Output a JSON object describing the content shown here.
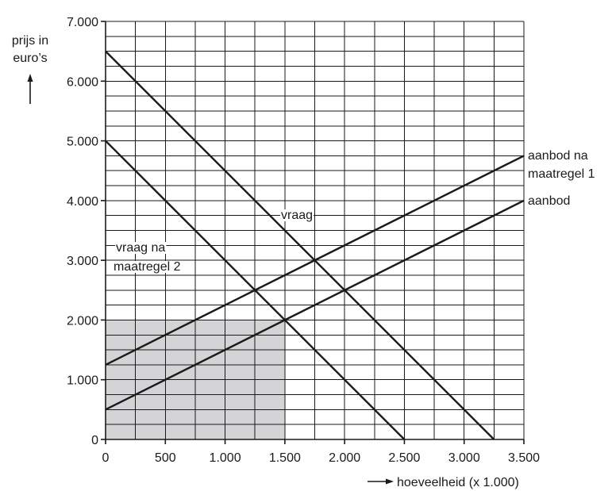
{
  "chart_data": {
    "type": "line",
    "ylabel": "prijs in euro’s",
    "xlabel": "hoeveelheid (x 1.000)",
    "xlim": [
      0,
      3500
    ],
    "ylim": [
      0,
      7000
    ],
    "x_minor_step": 250,
    "y_minor_step": 250,
    "x_ticks": [
      0,
      500,
      1000,
      1500,
      2000,
      2500,
      3000,
      3500
    ],
    "x_tick_labels": [
      "0",
      "500",
      "1.000",
      "1.500",
      "2.000",
      "2.500",
      "3.000",
      "3.500"
    ],
    "y_ticks": [
      0,
      1000,
      2000,
      3000,
      4000,
      5000,
      6000,
      7000
    ],
    "y_tick_labels": [
      "0",
      "1.000",
      "2.000",
      "3.000",
      "4.000",
      "5.000",
      "6.000",
      "7.000"
    ],
    "grid": true,
    "series": [
      {
        "name": "vraag",
        "x": [
          0,
          3250
        ],
        "y": [
          6500,
          0
        ]
      },
      {
        "name": "vraag na maatregel 2",
        "x": [
          0,
          2500
        ],
        "y": [
          5000,
          0
        ]
      },
      {
        "name": "aanbod na maatregel 1",
        "x": [
          0,
          3500
        ],
        "y": [
          1250,
          4750
        ]
      },
      {
        "name": "aanbod",
        "x": [
          0,
          3500
        ],
        "y": [
          500,
          4000
        ]
      }
    ],
    "shaded_region": {
      "x": [
        0,
        1500
      ],
      "y": [
        0,
        2000
      ]
    },
    "annotations": [
      {
        "text": "vraag"
      },
      {
        "text": "vraag na"
      },
      {
        "text": "maatregel 2"
      },
      {
        "text": "aanbod na"
      },
      {
        "text": "maatregel 1"
      },
      {
        "text": "aanbod"
      }
    ]
  }
}
